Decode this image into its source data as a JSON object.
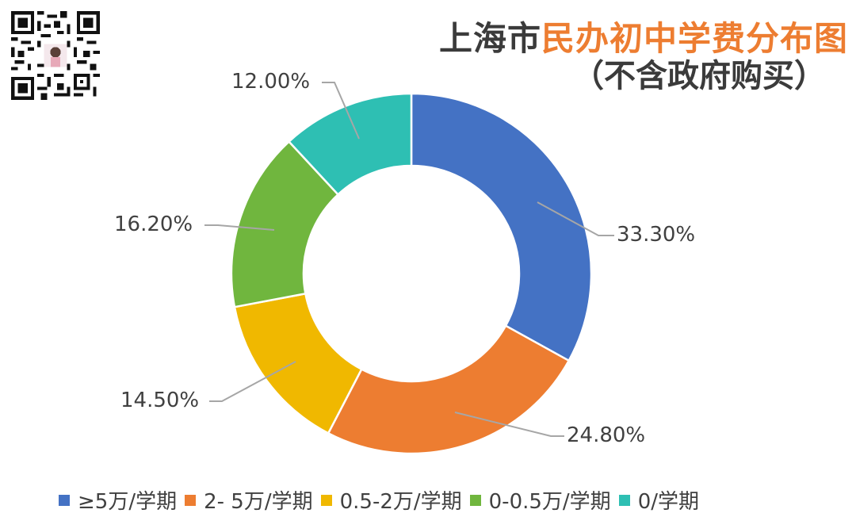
{
  "title": {
    "part1": "上海市",
    "part2": "民办初中学费分布图",
    "subtitle": "（不含政府购买）"
  },
  "qr_code": {
    "icon": "qr-code-icon"
  },
  "chart_data": {
    "type": "pie",
    "subtype": "donut",
    "title": "上海市民办初中学费分布图（不含政府购买）",
    "categories": [
      "≥5万/学期",
      "2- 5万/学期",
      "0.5-2万/学期",
      "0-0.5万/学期",
      "0/学期"
    ],
    "values": [
      33.3,
      24.8,
      14.5,
      16.2,
      12.0
    ],
    "labels": [
      "33.30%",
      "24.80%",
      "14.50%",
      "16.20%",
      "12.00%"
    ],
    "colors": [
      "#4472c4",
      "#ed7d31",
      "#f0b800",
      "#70b63e",
      "#2ebfb3"
    ],
    "legend_position": "bottom",
    "start_angle_deg": 0,
    "direction": "clockwise"
  },
  "legend": {
    "items": [
      {
        "label": "≥5万/学期",
        "color": "#4472c4"
      },
      {
        "label": "2- 5万/学期",
        "color": "#ed7d31"
      },
      {
        "label": "0.5-2万/学期",
        "color": "#f0b800"
      },
      {
        "label": "0-0.5万/学期",
        "color": "#70b63e"
      },
      {
        "label": "0/学期",
        "color": "#2ebfb3"
      }
    ]
  },
  "data_labels": {
    "l0": "33.30%",
    "l1": "24.80%",
    "l2": "14.50%",
    "l3": "16.20%",
    "l4": "12.00%"
  }
}
